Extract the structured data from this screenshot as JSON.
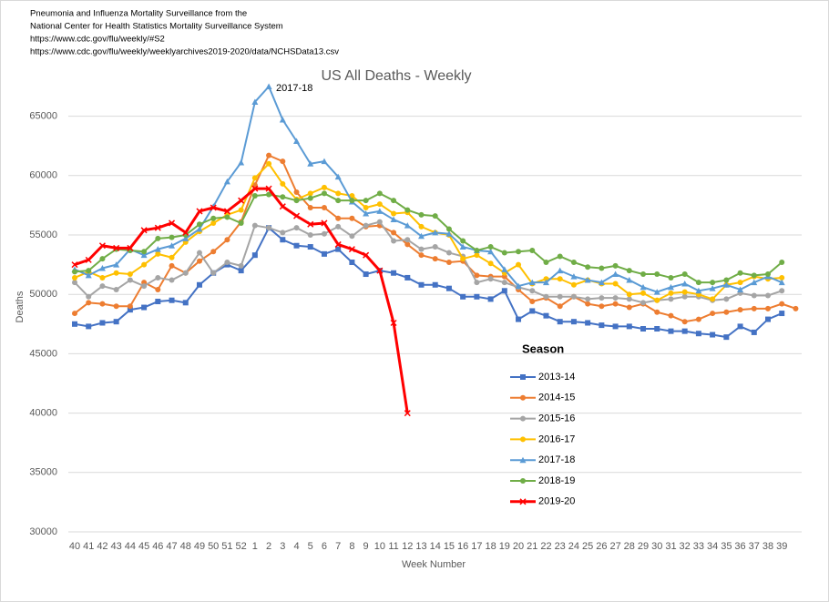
{
  "chart_data": {
    "type": "line",
    "notes": [
      "Pneumonia and Influenza Mortality Surveillance from the",
      "National Center for Health Statistics Mortality Surveillance System",
      "https://www.cdc.gov/flu/weekly/#S2",
      "https://www.cdc.gov/flu/weekly/weeklyarchives2019-2020/data/NCHSData13.csv"
    ],
    "title": "US All Deaths - Weekly",
    "annotation": "2017-18",
    "x_label": "Week Number",
    "y_label": "Deaths",
    "legend_title": "Season",
    "categories": [
      "40",
      "41",
      "42",
      "43",
      "44",
      "45",
      "46",
      "47",
      "48",
      "49",
      "50",
      "51",
      "52",
      "1",
      "2",
      "3",
      "4",
      "5",
      "6",
      "7",
      "8",
      "9",
      "10",
      "11",
      "12",
      "13",
      "14",
      "15",
      "16",
      "17",
      "18",
      "19",
      "20",
      "21",
      "22",
      "23",
      "24",
      "25",
      "26",
      "27",
      "28",
      "29",
      "30",
      "31",
      "32",
      "33",
      "34",
      "35",
      "36",
      "37",
      "38",
      "39",
      null
    ],
    "ylim": [
      30000,
      67500
    ],
    "yticks": [
      30000,
      35000,
      40000,
      45000,
      50000,
      55000,
      60000,
      65000
    ],
    "grid": true,
    "series": [
      {
        "name": "2013-14",
        "color": "#4472c4",
        "marker": "square",
        "values": [
          47500,
          47300,
          47600,
          47700,
          48700,
          48900,
          49400,
          49500,
          49300,
          50800,
          51800,
          52500,
          52000,
          53300,
          55600,
          54600,
          54100,
          54000,
          53400,
          53800,
          52700,
          51700,
          52000,
          51800,
          51400,
          50800,
          50800,
          50500,
          49800,
          49800,
          49600,
          50300,
          47900,
          48600,
          48200,
          47700,
          47700,
          47600,
          47400,
          47300,
          47300,
          47100,
          47100,
          46900,
          46900,
          46700,
          46600,
          46400,
          47300,
          46800,
          47900,
          48400,
          null
        ]
      },
      {
        "name": "2014-15",
        "color": "#ed7d31",
        "marker": "circle",
        "values": [
          48400,
          49300,
          49200,
          49000,
          49000,
          51000,
          50400,
          52400,
          51800,
          52800,
          53600,
          54600,
          56100,
          59200,
          61700,
          61200,
          58600,
          57300,
          57300,
          56400,
          56400,
          55700,
          55800,
          55200,
          54200,
          53300,
          53000,
          52700,
          52800,
          51600,
          51500,
          51500,
          50400,
          49400,
          49700,
          49000,
          49800,
          49200,
          49000,
          49200,
          48900,
          49200,
          48500,
          48200,
          47700,
          47900,
          48400,
          48500,
          48700,
          48800,
          48800,
          49200,
          48800
        ]
      },
      {
        "name": "2015-16",
        "color": "#a5a5a5",
        "marker": "circle",
        "values": [
          51000,
          49800,
          50700,
          50400,
          51200,
          50700,
          51400,
          51200,
          51800,
          53500,
          51800,
          52700,
          52400,
          55800,
          55600,
          55200,
          55600,
          55000,
          55100,
          55700,
          54900,
          55800,
          56100,
          54500,
          54600,
          53800,
          54000,
          53500,
          53200,
          51000,
          51300,
          51000,
          50600,
          50300,
          49800,
          49800,
          49800,
          49600,
          49700,
          49700,
          49600,
          49300,
          49500,
          49600,
          49800,
          49800,
          49500,
          49600,
          50100,
          49900,
          49900,
          50300,
          null
        ]
      },
      {
        "name": "2016-17",
        "color": "#ffc000",
        "marker": "circle",
        "values": [
          51400,
          51900,
          51400,
          51800,
          51700,
          52500,
          53400,
          53100,
          54400,
          55300,
          56000,
          56700,
          57100,
          59800,
          61000,
          59300,
          58000,
          58500,
          59000,
          58500,
          58300,
          57300,
          57600,
          56800,
          56900,
          55700,
          55200,
          55000,
          53000,
          53300,
          52600,
          51800,
          52500,
          50900,
          51300,
          51300,
          50800,
          51200,
          50900,
          50900,
          50000,
          50100,
          49500,
          50100,
          50200,
          50000,
          49600,
          50800,
          51000,
          51500,
          51300,
          51400,
          null
        ]
      },
      {
        "name": "2017-18",
        "color": "#5b9bd5",
        "marker": "triangle",
        "values": [
          52100,
          51600,
          52200,
          52500,
          53800,
          53300,
          53800,
          54100,
          54700,
          55500,
          57400,
          59500,
          61100,
          66200,
          67500,
          64700,
          62900,
          61000,
          61200,
          59900,
          57800,
          56800,
          57000,
          56300,
          55800,
          54900,
          55200,
          55100,
          54000,
          53700,
          53600,
          52100,
          50700,
          51000,
          51000,
          52000,
          51500,
          51200,
          51000,
          51700,
          51200,
          50600,
          50200,
          50600,
          50900,
          50300,
          50500,
          50800,
          50400,
          51000,
          51500,
          51000,
          null
        ]
      },
      {
        "name": "2018-19",
        "color": "#70ad47",
        "marker": "circle",
        "values": [
          51900,
          52000,
          53000,
          53800,
          53700,
          53600,
          54700,
          54800,
          55000,
          55900,
          56400,
          56500,
          56000,
          58300,
          58400,
          58200,
          57900,
          58100,
          58500,
          57900,
          57900,
          57900,
          58500,
          57900,
          57100,
          56700,
          56600,
          55500,
          54500,
          53700,
          54000,
          53500,
          53600,
          53700,
          52700,
          53200,
          52700,
          52300,
          52200,
          52400,
          52000,
          51700,
          51700,
          51400,
          51700,
          51000,
          51000,
          51200,
          51800,
          51600,
          51700,
          52700,
          null
        ]
      },
      {
        "name": "2019-20",
        "color": "#ff0000",
        "marker": "x",
        "line_width": 3,
        "values": [
          52500,
          52900,
          54100,
          53900,
          53900,
          55400,
          55600,
          56000,
          55200,
          57000,
          57300,
          57000,
          57900,
          58900,
          58900,
          57400,
          56600,
          55900,
          56000,
          54200,
          53800,
          53300,
          52000,
          47600,
          40000,
          null,
          null,
          null,
          null,
          null,
          null,
          null,
          null,
          null,
          null,
          null,
          null,
          null,
          null,
          null,
          null,
          null,
          null,
          null,
          null,
          null,
          null,
          null,
          null,
          null,
          null,
          null,
          null
        ]
      }
    ]
  }
}
